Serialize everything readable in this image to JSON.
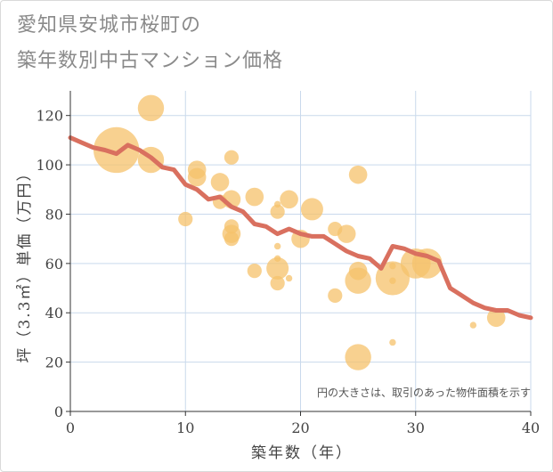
{
  "title_line1": "愛知県安城市桜町の",
  "title_line2": "築年数別中古マンション価格",
  "chart_data": {
    "type": "scatter",
    "xlabel": "築年数（年）",
    "ylabel": "坪（3.3㎡）単価（万円）",
    "xlim": [
      0,
      40
    ],
    "ylim": [
      0,
      130
    ],
    "xticks": [
      0,
      10,
      20,
      30,
      40
    ],
    "yticks": [
      0,
      20,
      40,
      60,
      80,
      100,
      120
    ],
    "grid": true,
    "annotation": "円の大きさは、取引のあった物件面積を示す",
    "colors": {
      "bubble": "#f5c26b",
      "line": "#d9705f",
      "grid": "#c9d9ec"
    },
    "bubbles": [
      {
        "x": 4,
        "y": 106,
        "size": 11
      },
      {
        "x": 7,
        "y": 123,
        "size": 6
      },
      {
        "x": 7,
        "y": 102,
        "size": 6
      },
      {
        "x": 10,
        "y": 78,
        "size": 3
      },
      {
        "x": 11,
        "y": 98,
        "size": 4
      },
      {
        "x": 11,
        "y": 95,
        "size": 4
      },
      {
        "x": 13,
        "y": 93,
        "size": 4
      },
      {
        "x": 13,
        "y": 85,
        "size": 3
      },
      {
        "x": 14,
        "y": 103,
        "size": 3
      },
      {
        "x": 14,
        "y": 86,
        "size": 4
      },
      {
        "x": 14,
        "y": 75,
        "size": 3
      },
      {
        "x": 14,
        "y": 72,
        "size": 4
      },
      {
        "x": 14,
        "y": 70,
        "size": 3
      },
      {
        "x": 16,
        "y": 87,
        "size": 4
      },
      {
        "x": 16,
        "y": 57,
        "size": 3
      },
      {
        "x": 18,
        "y": 84,
        "size": 1
      },
      {
        "x": 18,
        "y": 81,
        "size": 3
      },
      {
        "x": 18,
        "y": 67,
        "size": 1
      },
      {
        "x": 18,
        "y": 62,
        "size": 1
      },
      {
        "x": 18,
        "y": 58,
        "size": 5
      },
      {
        "x": 18,
        "y": 52,
        "size": 3
      },
      {
        "x": 19,
        "y": 86,
        "size": 4
      },
      {
        "x": 19,
        "y": 54,
        "size": 1
      },
      {
        "x": 20,
        "y": 70,
        "size": 4
      },
      {
        "x": 21,
        "y": 82,
        "size": 5
      },
      {
        "x": 23,
        "y": 74,
        "size": 3
      },
      {
        "x": 23,
        "y": 47,
        "size": 3
      },
      {
        "x": 24,
        "y": 72,
        "size": 4
      },
      {
        "x": 25,
        "y": 96,
        "size": 4
      },
      {
        "x": 25,
        "y": 57,
        "size": 4
      },
      {
        "x": 25,
        "y": 53,
        "size": 6
      },
      {
        "x": 25,
        "y": 22,
        "size": 6
      },
      {
        "x": 28,
        "y": 59,
        "size": 1
      },
      {
        "x": 28,
        "y": 54,
        "size": 8
      },
      {
        "x": 28,
        "y": 53,
        "size": 1
      },
      {
        "x": 28,
        "y": 28,
        "size": 1
      },
      {
        "x": 30,
        "y": 60,
        "size": 7
      },
      {
        "x": 31,
        "y": 60,
        "size": 7
      },
      {
        "x": 35,
        "y": 35,
        "size": 1
      },
      {
        "x": 37,
        "y": 38,
        "size": 4
      }
    ],
    "series": [
      {
        "x": [
          0,
          1,
          2,
          3,
          4,
          5,
          6,
          7,
          8,
          9,
          10,
          11,
          12,
          13,
          14,
          15,
          16,
          17,
          18,
          19,
          20,
          21,
          22,
          23,
          24,
          25,
          26,
          27,
          28,
          29,
          30,
          31,
          32,
          33,
          34,
          35,
          36,
          37,
          38,
          39,
          40
        ],
        "values": [
          111,
          109,
          107,
          106,
          104.5,
          108,
          106,
          103,
          99,
          98,
          92,
          90,
          86,
          87,
          83,
          81,
          76,
          75,
          72,
          74,
          72,
          71,
          71,
          68,
          65,
          63,
          62,
          58,
          67,
          66,
          64,
          63,
          61,
          50,
          47,
          44,
          42,
          41,
          41,
          39,
          38
        ]
      }
    ]
  }
}
